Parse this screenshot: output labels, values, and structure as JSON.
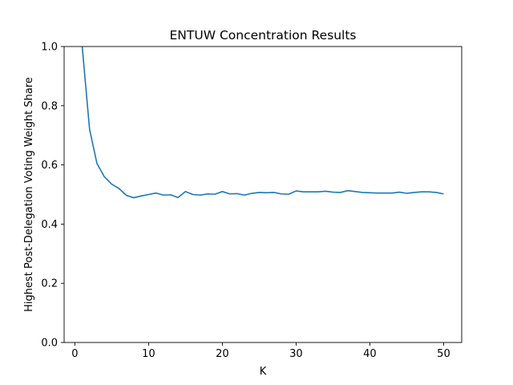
{
  "chart_data": {
    "type": "line",
    "title": "ENTUW Concentration Results",
    "xlabel": "K",
    "ylabel": "Highest Post-Delegation Voting Weight Share",
    "xlim": [
      -1.45,
      52.45
    ],
    "ylim": [
      0,
      1.0
    ],
    "xticks": [
      0,
      10,
      20,
      30,
      40,
      50
    ],
    "yticks": [
      0.0,
      0.2,
      0.4,
      0.6,
      0.8,
      1.0
    ],
    "ytick_labels": [
      "0.0",
      "0.2",
      "0.4",
      "0.6",
      "0.8",
      "1.0"
    ],
    "xtick_labels": [
      "0",
      "10",
      "20",
      "30",
      "40",
      "50"
    ],
    "grid": false,
    "line_color": "#1f77b4",
    "series": [
      {
        "x": [
          1,
          2,
          3,
          4,
          5,
          6,
          7,
          8,
          9,
          10,
          11,
          12,
          13,
          14,
          15,
          16,
          17,
          18,
          19,
          20,
          21,
          22,
          23,
          24,
          25,
          26,
          27,
          28,
          29,
          30,
          31,
          32,
          33,
          34,
          35,
          36,
          37,
          38,
          39,
          40,
          41,
          42,
          43,
          44,
          45,
          46,
          47,
          48,
          49,
          50
        ],
        "values": [
          1.0,
          0.72,
          0.605,
          0.56,
          0.535,
          0.52,
          0.497,
          0.489,
          0.495,
          0.5,
          0.505,
          0.498,
          0.499,
          0.49,
          0.51,
          0.5,
          0.498,
          0.502,
          0.501,
          0.51,
          0.502,
          0.503,
          0.498,
          0.504,
          0.507,
          0.506,
          0.507,
          0.502,
          0.501,
          0.512,
          0.509,
          0.509,
          0.509,
          0.511,
          0.508,
          0.507,
          0.513,
          0.51,
          0.507,
          0.506,
          0.505,
          0.505,
          0.505,
          0.508,
          0.504,
          0.507,
          0.509,
          0.509,
          0.507,
          0.502
        ]
      }
    ]
  }
}
